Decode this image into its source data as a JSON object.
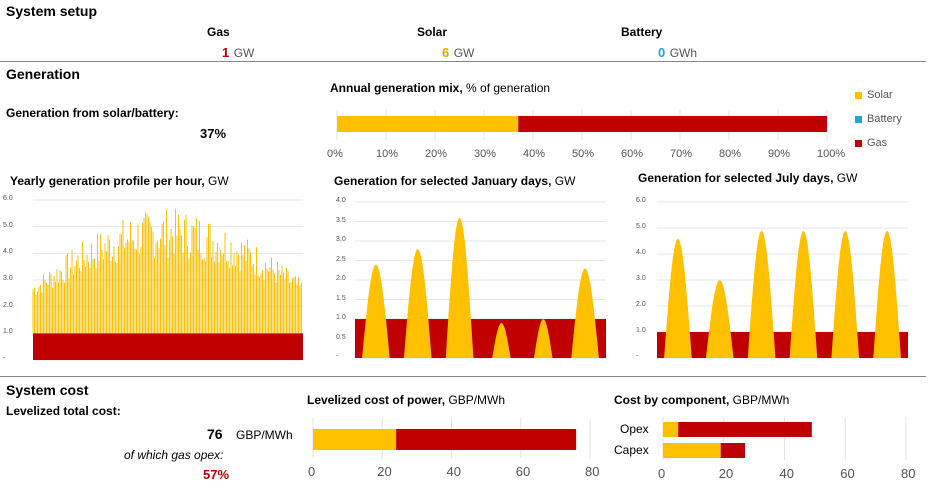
{
  "colors": {
    "solar": "#FFC000",
    "battery": "#1FA3D8",
    "gas": "#C00000",
    "gasText": "#C00000",
    "solarText": "#E0A800",
    "batteryText": "#1FA3D8"
  },
  "setup": {
    "title": "System setup",
    "gas": {
      "label": "Gas",
      "value": "1",
      "unit": "GW"
    },
    "solar": {
      "label": "Solar",
      "value": "6",
      "unit": "GW"
    },
    "battery": {
      "label": "Battery",
      "value": "0",
      "unit": "GWh"
    }
  },
  "generation": {
    "title": "Generation",
    "share_label": "Generation from solar/battery:",
    "share_value": "37%"
  },
  "cost": {
    "title": "System cost",
    "total_label": "Levelized total cost:",
    "total_value": "76",
    "total_unit": "GBP/MWh",
    "opex_label": "of which gas opex:",
    "opex_value": "57%"
  },
  "charts": {
    "mix": {
      "title_bold": "Annual generation mix,",
      "title_rest": " % of generation",
      "ticks": [
        "0%",
        "10%",
        "20%",
        "30%",
        "40%",
        "50%",
        "60%",
        "70%",
        "80%",
        "90%",
        "100%"
      ],
      "legend": [
        "Solar",
        "Battery",
        "Gas"
      ]
    },
    "yearly": {
      "title_bold": "Yearly generation profile per hour,",
      "title_rest": " GW",
      "yticks": [
        "6.0",
        "5.0",
        "4.0",
        "3.0",
        "2.0",
        "1.0",
        "-"
      ]
    },
    "jan": {
      "title_bold": "Generation for selected January days,",
      "title_rest": " GW",
      "yticks": [
        "4.0",
        "3.5",
        "3.0",
        "2.5",
        "2.0",
        "1.5",
        "1.0",
        "0.5",
        "-"
      ]
    },
    "jul": {
      "title_bold": "Generation for selected July days,",
      "title_rest": " GW",
      "yticks": [
        "6.0",
        "5.0",
        "4.0",
        "3.0",
        "2.0",
        "1.0",
        "-"
      ]
    },
    "lcop": {
      "title_bold": "Levelized cost of power,",
      "title_rest": " GBP/MWh",
      "ticks": [
        "0",
        "20",
        "40",
        "60",
        "80"
      ]
    },
    "comp": {
      "title_bold": "Cost by component,",
      "title_rest": " GBP/MWh",
      "categories": [
        "Opex",
        "Capex"
      ],
      "ticks": [
        "0",
        "20",
        "40",
        "60",
        "80"
      ]
    }
  },
  "chart_data": [
    {
      "type": "bar",
      "stacked": true,
      "orientation": "horizontal",
      "series": [
        {
          "name": "Solar",
          "values": [
            37
          ]
        },
        {
          "name": "Battery",
          "values": [
            0
          ]
        },
        {
          "name": "Gas",
          "values": [
            63
          ]
        }
      ],
      "xlim": [
        0,
        100
      ]
    },
    {
      "type": "area",
      "xlabel": "",
      "ylim": [
        0,
        6
      ],
      "series": [
        {
          "name": "Gas",
          "values": [
            1.0
          ]
        },
        {
          "name": "Solar",
          "peak_range": [
            3.0,
            5.7
          ]
        }
      ]
    },
    {
      "type": "area",
      "ylim": [
        0,
        4
      ],
      "solar_day_peaks": [
        2.4,
        2.8,
        3.6,
        0.9,
        1.0,
        2.3
      ],
      "gas_level": 1.0
    },
    {
      "type": "area",
      "ylim": [
        0,
        6
      ],
      "solar_day_peaks": [
        4.6,
        3.0,
        4.9,
        4.9,
        4.9,
        4.9
      ],
      "gas_level": 1.0
    },
    {
      "type": "bar",
      "stacked": true,
      "orientation": "horizontal",
      "categories": [
        ""
      ],
      "series": [
        {
          "name": "Solar",
          "values": [
            24
          ]
        },
        {
          "name": "Gas",
          "values": [
            52
          ]
        }
      ],
      "xlim": [
        0,
        80
      ]
    },
    {
      "type": "bar",
      "stacked": true,
      "orientation": "horizontal",
      "categories": [
        "Opex",
        "Capex"
      ],
      "series": [
        {
          "name": "Solar",
          "values": [
            5,
            19
          ]
        },
        {
          "name": "Gas",
          "values": [
            44,
            8
          ]
        }
      ],
      "xlim": [
        0,
        80
      ]
    }
  ]
}
